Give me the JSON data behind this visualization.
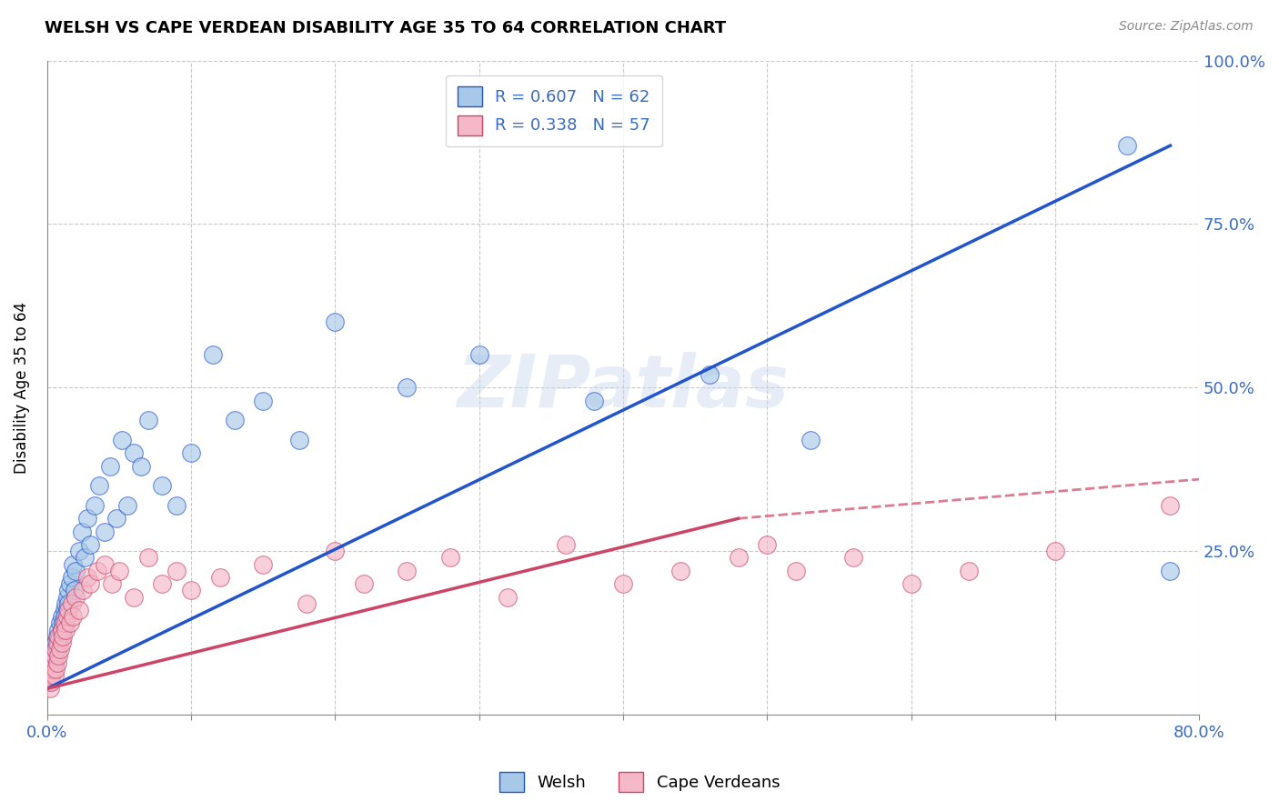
{
  "title": "WELSH VS CAPE VERDEAN DISABILITY AGE 35 TO 64 CORRELATION CHART",
  "source": "Source: ZipAtlas.com",
  "ylabel": "Disability Age 35 to 64",
  "xlim": [
    0.0,
    0.8
  ],
  "ylim": [
    0.0,
    1.0
  ],
  "welsh_R": 0.607,
  "welsh_N": 62,
  "cape_R": 0.338,
  "cape_N": 57,
  "welsh_color": "#a8c8e8",
  "cape_color": "#f4b8c8",
  "welsh_line_color": "#2255cc",
  "cape_line_color": "#cc4466",
  "watermark": "ZIPatlas",
  "legend_labels": [
    "Welsh",
    "Cape Verdeans"
  ],
  "welsh_x": [
    0.002,
    0.003,
    0.003,
    0.004,
    0.004,
    0.005,
    0.005,
    0.006,
    0.006,
    0.007,
    0.007,
    0.008,
    0.008,
    0.009,
    0.009,
    0.01,
    0.01,
    0.011,
    0.011,
    0.012,
    0.012,
    0.013,
    0.013,
    0.014,
    0.014,
    0.015,
    0.015,
    0.016,
    0.017,
    0.018,
    0.019,
    0.02,
    0.022,
    0.024,
    0.026,
    0.028,
    0.03,
    0.033,
    0.036,
    0.04,
    0.044,
    0.048,
    0.052,
    0.056,
    0.06,
    0.065,
    0.07,
    0.08,
    0.09,
    0.1,
    0.115,
    0.13,
    0.15,
    0.175,
    0.2,
    0.25,
    0.3,
    0.38,
    0.46,
    0.53,
    0.75,
    0.78
  ],
  "welsh_y": [
    0.05,
    0.06,
    0.08,
    0.07,
    0.09,
    0.08,
    0.1,
    0.09,
    0.11,
    0.1,
    0.12,
    0.11,
    0.13,
    0.12,
    0.14,
    0.13,
    0.15,
    0.14,
    0.13,
    0.16,
    0.15,
    0.17,
    0.14,
    0.18,
    0.16,
    0.19,
    0.17,
    0.2,
    0.21,
    0.23,
    0.19,
    0.22,
    0.25,
    0.28,
    0.24,
    0.3,
    0.26,
    0.32,
    0.35,
    0.28,
    0.38,
    0.3,
    0.42,
    0.32,
    0.4,
    0.38,
    0.45,
    0.35,
    0.32,
    0.4,
    0.55,
    0.45,
    0.48,
    0.42,
    0.6,
    0.5,
    0.55,
    0.48,
    0.52,
    0.42,
    0.87,
    0.22
  ],
  "cape_x": [
    0.002,
    0.003,
    0.003,
    0.004,
    0.004,
    0.005,
    0.005,
    0.006,
    0.006,
    0.007,
    0.007,
    0.008,
    0.008,
    0.009,
    0.01,
    0.01,
    0.011,
    0.012,
    0.013,
    0.014,
    0.015,
    0.016,
    0.017,
    0.018,
    0.02,
    0.022,
    0.025,
    0.028,
    0.03,
    0.035,
    0.04,
    0.045,
    0.05,
    0.06,
    0.07,
    0.08,
    0.09,
    0.1,
    0.12,
    0.15,
    0.18,
    0.2,
    0.22,
    0.25,
    0.28,
    0.32,
    0.36,
    0.4,
    0.44,
    0.48,
    0.5,
    0.52,
    0.56,
    0.6,
    0.64,
    0.7,
    0.78
  ],
  "cape_y": [
    0.04,
    0.06,
    0.05,
    0.07,
    0.08,
    0.06,
    0.09,
    0.07,
    0.1,
    0.08,
    0.11,
    0.09,
    0.12,
    0.1,
    0.11,
    0.13,
    0.12,
    0.14,
    0.13,
    0.15,
    0.16,
    0.14,
    0.17,
    0.15,
    0.18,
    0.16,
    0.19,
    0.21,
    0.2,
    0.22,
    0.23,
    0.2,
    0.22,
    0.18,
    0.24,
    0.2,
    0.22,
    0.19,
    0.21,
    0.23,
    0.17,
    0.25,
    0.2,
    0.22,
    0.24,
    0.18,
    0.26,
    0.2,
    0.22,
    0.24,
    0.26,
    0.22,
    0.24,
    0.2,
    0.22,
    0.25,
    0.32
  ],
  "welsh_trendline": [
    0.04,
    0.9
  ],
  "cape_trendline_solid": [
    0.04,
    0.3
  ],
  "cape_trendline_dashed_end": 0.35
}
